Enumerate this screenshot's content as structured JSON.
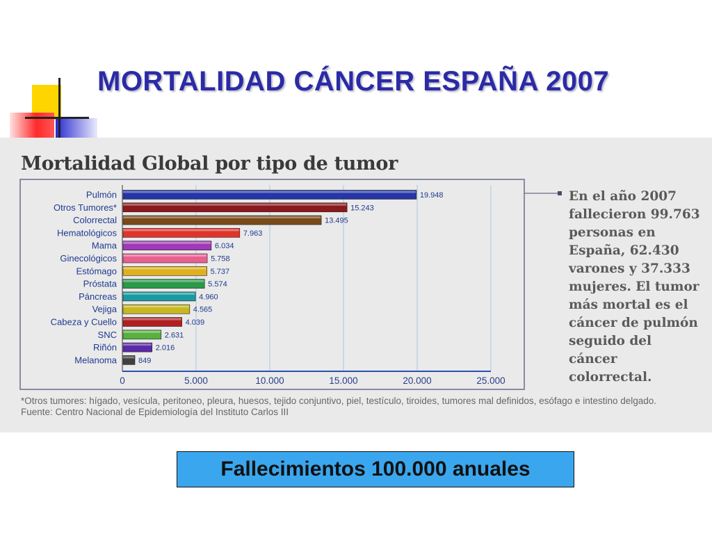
{
  "slide": {
    "title": "MORTALIDAD CÁNCER ESPAÑA 2007",
    "banner": "Fallecimientos 100.000 anuales"
  },
  "figure": {
    "side_note": "En el año 2007 fallecieron 99.763 personas en España, 62.430 varones y 37.333 mujeres. El tumor más mortal es el cáncer de pulmón seguido del cáncer colorrectal.",
    "footnote_1": "*Otros tumores: hígado, vesícula, peritoneo, pleura, huesos, tejido conjuntivo, piel, testículo, tiroides, tumores mal definidos, esófago e intestino delgado.",
    "footnote_2": "Fuente: Centro Nacional de Epidemiología del Instituto Carlos III"
  },
  "chart_data": {
    "type": "bar",
    "orientation": "horizontal",
    "title": "Mortalidad Global por tipo de tumor",
    "xlabel": "",
    "ylabel": "",
    "xlim": [
      0,
      25000
    ],
    "xticks": [
      0,
      5000,
      10000,
      15000,
      20000,
      25000
    ],
    "xtick_labels": [
      "0",
      "5.000",
      "10.000",
      "15.000",
      "20.000",
      "25.000"
    ],
    "grid": true,
    "categories": [
      "Pulmón",
      "Otros Tumores*",
      "Colorrectal",
      "Hematológicos",
      "Mama",
      "Ginecológicos",
      "Estómago",
      "Próstata",
      "Páncreas",
      "Vejiga",
      "Cabeza y Cuello",
      "SNC",
      "Riñón",
      "Melanoma"
    ],
    "values": [
      19948,
      15243,
      13495,
      7963,
      6034,
      5758,
      5737,
      5574,
      4960,
      4565,
      4039,
      2631,
      2016,
      849
    ],
    "value_labels": [
      "19.948",
      "15.243",
      "13.495",
      "7.963",
      "6.034",
      "5.758",
      "5.737",
      "5.574",
      "4.960",
      "4.565",
      "4.039",
      "2.631",
      "2.016",
      "849"
    ],
    "colors": [
      "#2636a8",
      "#8a1a1e",
      "#7a4a1a",
      "#e0342a",
      "#a03ab8",
      "#e86090",
      "#e0b020",
      "#2a9a48",
      "#1a9aa0",
      "#c8b820",
      "#b02020",
      "#58b040",
      "#5a2aa8",
      "#404040"
    ]
  }
}
